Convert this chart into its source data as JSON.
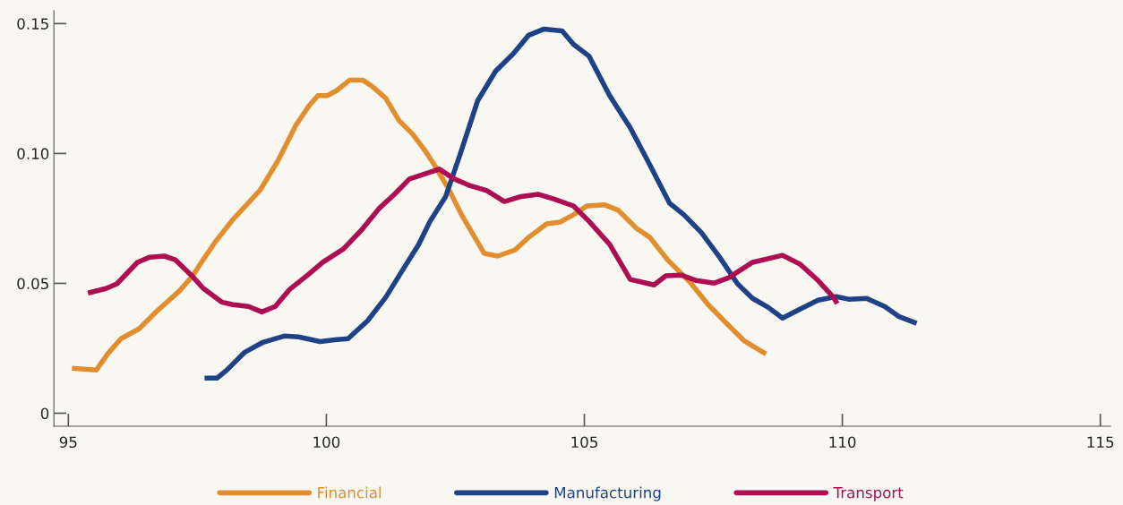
{
  "chart_data": {
    "type": "line",
    "xlim": [
      94.72,
      115.2
    ],
    "ylim": [
      -0.005,
      0.155
    ],
    "xticks": [
      95,
      100,
      105,
      110,
      115
    ],
    "yticks": [
      0,
      0.05,
      {
        "value": 0.1,
        "label": "0.10"
      },
      0.15
    ],
    "grid": false,
    "legend": "bottom",
    "line_style": "solid",
    "marker": "none",
    "series": [
      {
        "name": "Financial",
        "color": "#e08e2e",
        "x": [
          95.07,
          95.54,
          95.76,
          96.02,
          96.37,
          96.72,
          97.15,
          97.41,
          97.59,
          97.85,
          98.19,
          98.72,
          99.06,
          99.41,
          99.67,
          99.84,
          100.02,
          100.19,
          100.45,
          100.71,
          100.89,
          101.15,
          101.41,
          101.67,
          101.93,
          102.1,
          102.36,
          102.62,
          103.06,
          103.32,
          103.66,
          103.92,
          104.27,
          104.53,
          104.79,
          105.05,
          105.4,
          105.66,
          106.01,
          106.27,
          106.61,
          107.05,
          107.4,
          107.74,
          108.09,
          108.52
        ],
        "values": [
          0.0173,
          0.0166,
          0.0228,
          0.0287,
          0.0325,
          0.0394,
          0.047,
          0.0529,
          0.0584,
          0.066,
          0.0746,
          0.086,
          0.0971,
          0.1109,
          0.1185,
          0.1223,
          0.1223,
          0.1241,
          0.1282,
          0.1282,
          0.1258,
          0.1213,
          0.1126,
          0.1075,
          0.1006,
          0.0954,
          0.0867,
          0.0764,
          0.0615,
          0.0605,
          0.0629,
          0.0677,
          0.0729,
          0.0736,
          0.0764,
          0.0798,
          0.0802,
          0.0781,
          0.0712,
          0.0677,
          0.0591,
          0.0504,
          0.0418,
          0.0349,
          0.028,
          0.0228
        ]
      },
      {
        "name": "Manufacturing",
        "color": "#1f4287",
        "x": [
          97.64,
          97.88,
          98.07,
          98.42,
          98.77,
          99.18,
          99.46,
          99.88,
          100.16,
          100.42,
          100.8,
          101.15,
          101.44,
          101.79,
          102.01,
          102.31,
          102.59,
          102.93,
          103.28,
          103.63,
          103.92,
          104.22,
          104.57,
          104.79,
          105.09,
          105.49,
          105.89,
          106.23,
          106.65,
          106.93,
          107.27,
          107.62,
          107.97,
          108.26,
          108.56,
          108.84,
          109.18,
          109.53,
          109.88,
          110.12,
          110.47,
          110.82,
          111.09,
          111.44
        ],
        "values": [
          0.0135,
          0.0135,
          0.0166,
          0.0235,
          0.0273,
          0.0297,
          0.0294,
          0.0276,
          0.0283,
          0.0287,
          0.0356,
          0.0446,
          0.0539,
          0.065,
          0.0739,
          0.0833,
          0.0995,
          0.1202,
          0.1317,
          0.1386,
          0.1455,
          0.1479,
          0.1472,
          0.142,
          0.1375,
          0.1223,
          0.1099,
          0.0971,
          0.0809,
          0.0764,
          0.0695,
          0.0601,
          0.0498,
          0.0442,
          0.0408,
          0.0366,
          0.0401,
          0.0435,
          0.0449,
          0.0439,
          0.0442,
          0.0411,
          0.0373,
          0.0346
        ]
      },
      {
        "name": "Transport",
        "color": "#ad0e52",
        "x": [
          95.38,
          95.73,
          95.94,
          96.34,
          96.58,
          96.86,
          97.07,
          97.38,
          97.62,
          97.97,
          98.19,
          98.49,
          98.75,
          99.01,
          99.29,
          99.64,
          99.93,
          100.33,
          100.68,
          101.02,
          101.32,
          101.61,
          102.19,
          102.48,
          102.76,
          103.11,
          103.45,
          103.75,
          104.1,
          104.39,
          104.79,
          105.09,
          105.49,
          105.89,
          106.13,
          106.35,
          106.58,
          106.88,
          107.17,
          107.52,
          107.8,
          108.26,
          108.84,
          109.18,
          109.53,
          109.83,
          109.9
        ],
        "values": [
          0.0463,
          0.048,
          0.0498,
          0.0581,
          0.0601,
          0.0605,
          0.0591,
          0.0532,
          0.048,
          0.0428,
          0.0418,
          0.0411,
          0.039,
          0.0411,
          0.0477,
          0.0532,
          0.0581,
          0.0632,
          0.0705,
          0.0788,
          0.0843,
          0.0902,
          0.094,
          0.0902,
          0.0878,
          0.0857,
          0.0815,
          0.0833,
          0.0843,
          0.0826,
          0.0798,
          0.0739,
          0.065,
          0.0515,
          0.0504,
          0.0494,
          0.0529,
          0.0532,
          0.0511,
          0.0501,
          0.0522,
          0.0581,
          0.0608,
          0.0574,
          0.0511,
          0.0446,
          0.0422
        ]
      }
    ]
  }
}
